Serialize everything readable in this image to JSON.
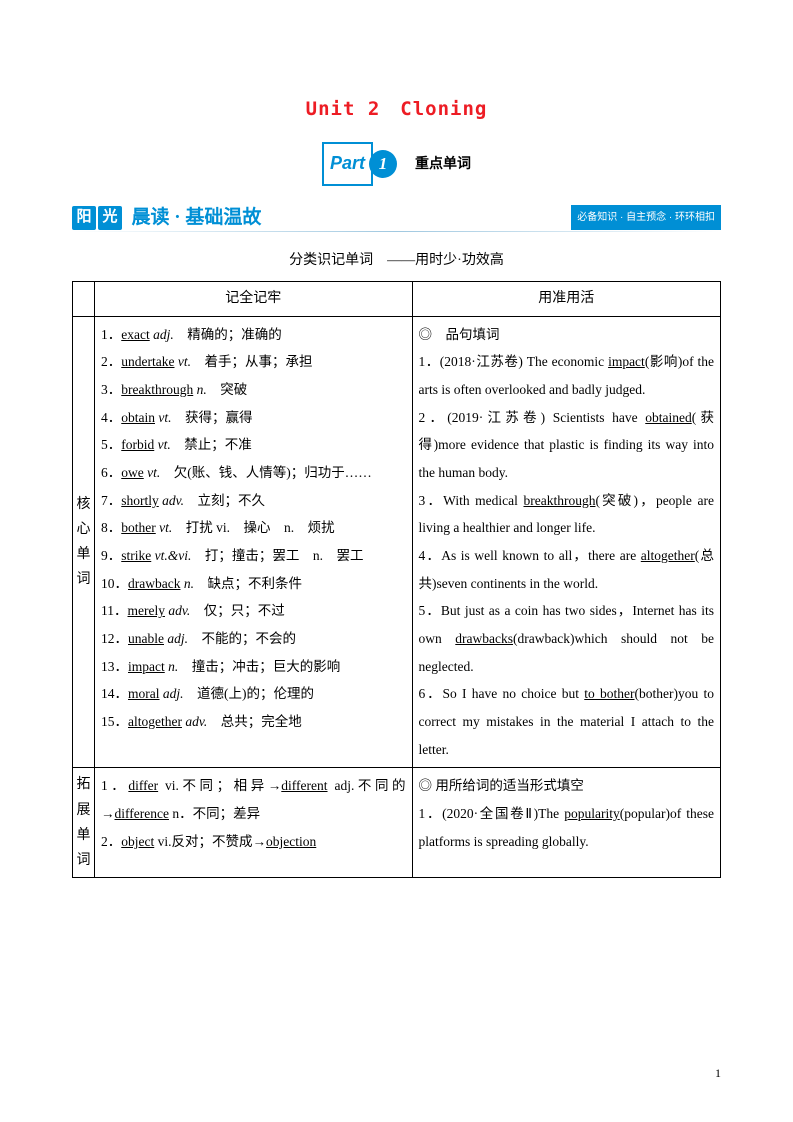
{
  "title": "Unit 2　Cloning",
  "part": {
    "word": "Part",
    "num": "1",
    "label": "重点单词"
  },
  "banner": {
    "yg1": "阳",
    "yg2": "光",
    "title": "晨读 · 基础温故",
    "sub": "必备知识 · 自主预念 · 环环相扣"
  },
  "classify": "分类识记单词　——用时少·功效高",
  "headers": {
    "left": "记全记牢",
    "right": "用准用活"
  },
  "row1": {
    "side": "核心单词",
    "left": [
      {
        "n": "1．",
        "w": "exact",
        "p": " adj.",
        "d": "　精确的；准确的"
      },
      {
        "n": "2．",
        "w": "undertake",
        "p": " vt.",
        "d": "　着手；从事；承担"
      },
      {
        "n": "3．",
        "w": "breakthrough",
        "p": " n.",
        "d": "　突破"
      },
      {
        "n": "4．",
        "w": "obtain",
        "p": " vt.",
        "d": "　获得；赢得"
      },
      {
        "n": "5．",
        "w": "forbid",
        "p": " vt.",
        "d": "　禁止；不准"
      },
      {
        "n": "6．",
        "w": "owe",
        "p": " vt.",
        "d": "　欠(账、钱、人情等)；归功于……"
      },
      {
        "n": "7．",
        "w": "shortly",
        "p": " adv.",
        "d": "　立刻；不久"
      },
      {
        "n": "8．",
        "w": "bother",
        "p": " vt.",
        "d": "　打扰 vi.　操心　n.　烦扰"
      },
      {
        "n": "9．",
        "w": "strike",
        "p": " vt.&vi.",
        "d": "　打；撞击；罢工　n.　罢工"
      },
      {
        "n": "10．",
        "w": "drawback",
        "p": " n.",
        "d": "　缺点；不利条件"
      },
      {
        "n": "11．",
        "w": "merely",
        "p": " adv.",
        "d": "　仅；只；不过"
      },
      {
        "n": "12．",
        "w": "unable",
        "p": " adj.",
        "d": "　不能的；不会的"
      },
      {
        "n": "13．",
        "w": "impact",
        "p": " n.",
        "d": "　撞击；冲击；巨大的影响"
      },
      {
        "n": "14．",
        "w": "moral",
        "p": " adj.",
        "d": "　道德(上)的；伦理的"
      },
      {
        "n": "15．",
        "w": "altogether",
        "p": " adv.",
        "d": "　总共；完全地"
      }
    ],
    "right": {
      "head": "◎　品句填词",
      "s1a": "1．(2018·江苏卷) The economic ",
      "s1u": "impact",
      "s1b": "(影响)of the arts is often overlooked and badly judged.",
      "s2a": "2．(2019·江苏卷) Scientists have ",
      "s2u": "obtained",
      "s2b": "(获得)more evidence that plastic is finding its way into the human body.",
      "s3a": "3．With medical ",
      "s3u": "breakthrough",
      "s3b": "(突破)，people are living a healthier and longer life.",
      "s4a": "4．As is well known to all，there are ",
      "s4u": "altogether",
      "s4b": "(总共)seven continents in the world.",
      "s5a": "5．But just as a coin has two sides，Internet has its own ",
      "s5u": "drawbacks",
      "s5b": "(drawback)which should not be neglected.",
      "s6a": "6．So I have no choice but ",
      "s6u": "to bother",
      "s6b": "(bother)you to correct my mistakes in the material I attach to the letter."
    }
  },
  "row2": {
    "side": "拓展单词",
    "left": {
      "l1a": "1．",
      "l1w1": "differ",
      "l1p1": " vi.不同；相异→",
      "l1w2": "different",
      "l1p2": " adj.不同的→",
      "l1w3": "difference",
      "l1p3": " n．不同；差异",
      "l2a": "2．",
      "l2w1": "object",
      "l2p1": " vi.反对；不赞成→",
      "l2w2": "objection"
    },
    "right": {
      "head": "◎ 用所给词的适当形式填空",
      "s1a": "1．(2020·全国卷Ⅱ)The ",
      "s1u": "popularity",
      "s1b": "(popular)of these platforms is spreading globally."
    }
  },
  "pagenum": "1"
}
